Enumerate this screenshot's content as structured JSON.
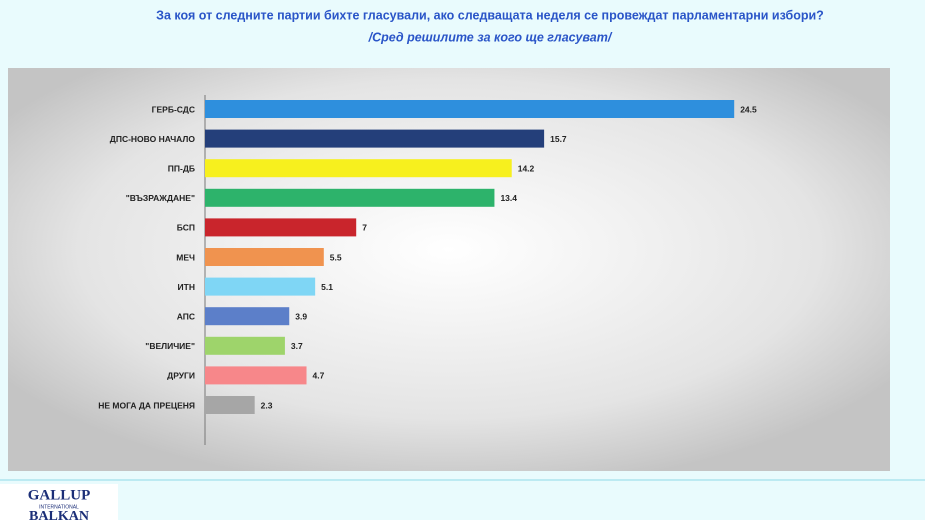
{
  "chart_data": {
    "type": "bar",
    "orientation": "horizontal",
    "title": "За коя от следните партии бихте  гласували,  ако следващата неделя се провеждат парламентарни избори?",
    "subtitle": "/Сред решилите за кого ще гласуват/",
    "categories": [
      "ГЕРБ-СДС",
      "ДПС-НОВО НАЧАЛО",
      "ПП-ДБ",
      "\"ВЪЗРАЖДАНЕ\"",
      "БСП",
      "МЕЧ",
      "ИТН",
      "АПС",
      "\"ВЕЛИЧИЕ\"",
      "ДРУГИ",
      "НЕ МОГА ДА ПРЕЦЕНЯ"
    ],
    "values": [
      24.5,
      15.7,
      14.2,
      13.4,
      7,
      5.5,
      5.1,
      3.9,
      3.7,
      4.7,
      2.3
    ],
    "colors": [
      "#2e8fdd",
      "#243f7a",
      "#f7f01e",
      "#2db36b",
      "#c9252c",
      "#f0934f",
      "#7fd6f5",
      "#5c7fc9",
      "#9ed46b",
      "#f7878a",
      "#a6a6a6"
    ],
    "xlim": [
      0,
      25
    ]
  },
  "logo": {
    "line1": "GALLUP",
    "line2": "INTERNATIONAL",
    "line3": "BALKAN"
  }
}
